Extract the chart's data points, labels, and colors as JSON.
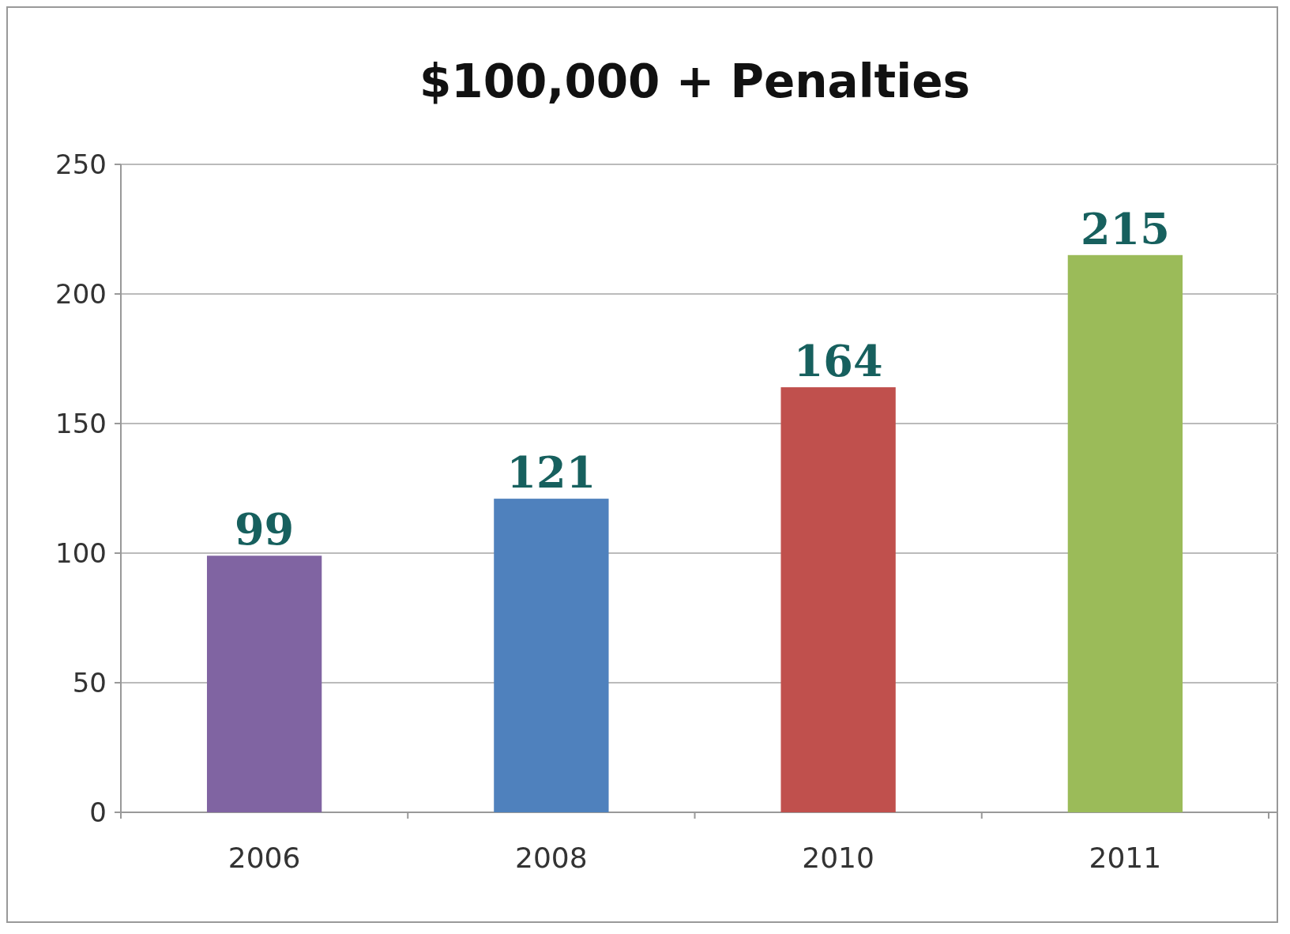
{
  "chart_data": {
    "type": "bar",
    "title": "$100,000 + Penalties",
    "categories": [
      "2006",
      "2008",
      "2010",
      "2011"
    ],
    "values": [
      99,
      121,
      164,
      215
    ],
    "colors": [
      "#8064a2",
      "#4f81bd",
      "#c0504d",
      "#9bbb59"
    ],
    "ylim": [
      0,
      250
    ],
    "yticks": [
      0,
      50,
      100,
      150,
      200,
      250
    ],
    "grid": "y",
    "data_labels": true
  }
}
